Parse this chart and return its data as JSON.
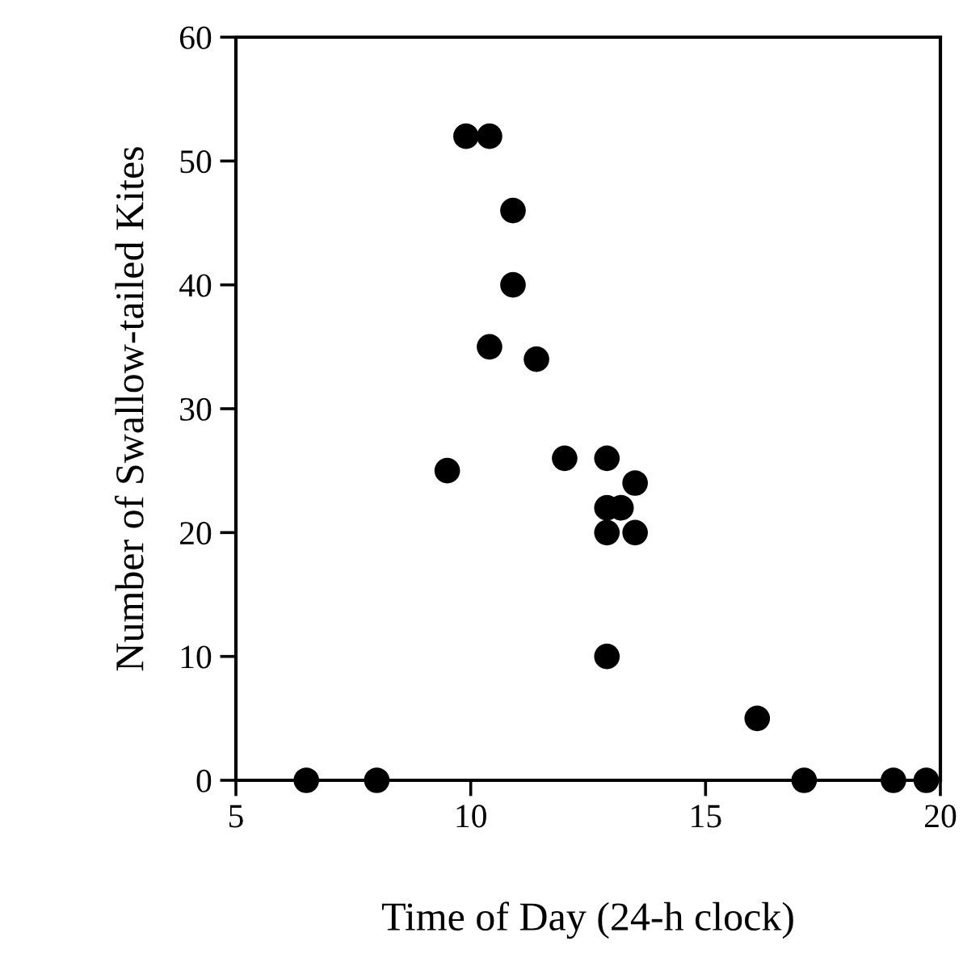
{
  "chart_data": {
    "type": "scatter",
    "xlabel": "Time of Day (24-h clock)",
    "ylabel": "Number of Swallow-tailed Kites",
    "x": [
      6.5,
      8,
      9.5,
      9.9,
      10.4,
      10.9,
      10.9,
      10.4,
      11.4,
      12,
      12.9,
      13.5,
      12.9,
      13.2,
      12.9,
      13.5,
      12.9,
      16.1,
      17.1,
      19,
      19.7
    ],
    "values": [
      0,
      0,
      25,
      52,
      52,
      46,
      40,
      35,
      34,
      26,
      26,
      24,
      22,
      22,
      20,
      20,
      10,
      5,
      0,
      0,
      0
    ],
    "color": "#000000",
    "marker": "circle",
    "xlim": [
      5,
      20
    ],
    "ylim": [
      0,
      60
    ],
    "xticks": [
      5,
      10,
      15,
      20
    ],
    "yticks": [
      0,
      10,
      20,
      30,
      40,
      50,
      60
    ],
    "grid": false,
    "legend": false
  }
}
